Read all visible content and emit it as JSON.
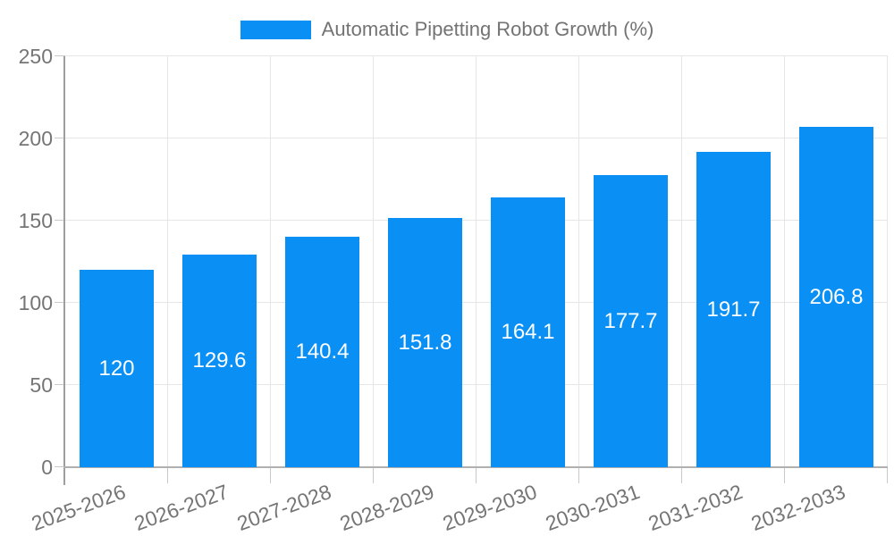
{
  "legend": {
    "label": "Automatic Pipetting Robot Growth (%)"
  },
  "chart_data": {
    "type": "bar",
    "title": "Automatic Pipetting Robot Growth (%)",
    "categories": [
      "2025-2026",
      "2026-2027",
      "2027-2028",
      "2028-2029",
      "2029-2030",
      "2030-2031",
      "2031-2032",
      "2032-2033"
    ],
    "values": [
      120,
      129.6,
      140.4,
      151.8,
      164.1,
      177.7,
      191.7,
      206.8
    ],
    "value_labels": [
      "120",
      "129.6",
      "140.4",
      "151.8",
      "164.1",
      "177.7",
      "191.7",
      "206.8"
    ],
    "xlabel": "",
    "ylabel": "",
    "ylim": [
      0,
      250
    ],
    "ytick_step": 50,
    "ytick_labels": [
      "0",
      "50",
      "100",
      "150",
      "200",
      "250"
    ],
    "grid": "on",
    "legend_position": "top",
    "colors": {
      "bar": "#0A8FF5",
      "bar_value_text": "#ffffff",
      "axis_text": "#757575",
      "legend_text": "#737373",
      "gridline": "#e6e6e6",
      "axis_line": "#9e9e9e",
      "background": "#ffffff"
    }
  }
}
